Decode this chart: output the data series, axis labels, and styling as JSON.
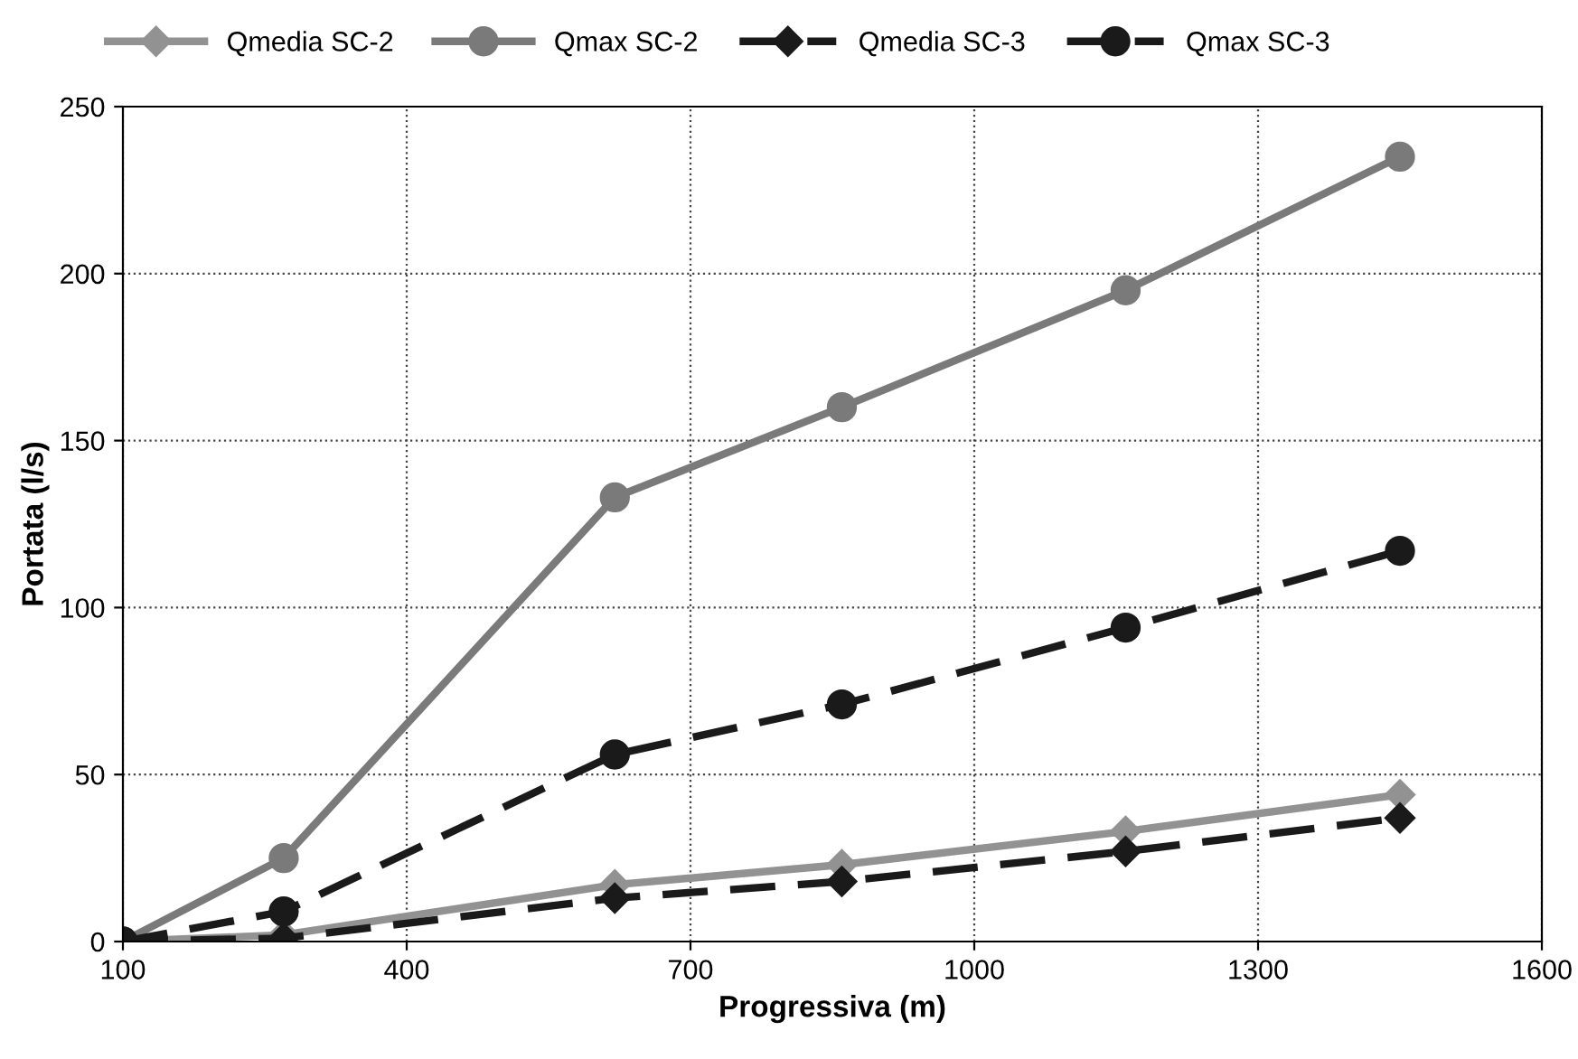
{
  "chart_data": {
    "type": "line",
    "xlabel": "Progressiva (m)",
    "ylabel": "Portata (l/s)",
    "x": [
      100,
      270,
      620,
      860,
      1160,
      1450
    ],
    "series": [
      {
        "name": "Qmedia SC-2",
        "color": "#929292",
        "marker": "diamond",
        "line_style": "solid",
        "values": [
          0,
          2,
          17,
          23,
          33,
          44
        ]
      },
      {
        "name": "Qmax SC-2",
        "color": "#7a7a7a",
        "marker": "circle",
        "line_style": "solid",
        "values": [
          0,
          25,
          133,
          160,
          195,
          235
        ]
      },
      {
        "name": "Qmedia SC-3",
        "color": "#1a1a1a",
        "marker": "diamond",
        "line_style": "dashed",
        "values": [
          0,
          1,
          13,
          18,
          27,
          37
        ]
      },
      {
        "name": "Qmax SC-3",
        "color": "#1a1a1a",
        "marker": "circle",
        "line_style": "dashed",
        "values": [
          0,
          9,
          56,
          71,
          94,
          117
        ]
      }
    ],
    "xlim": [
      100,
      1600
    ],
    "xticks": [
      100,
      400,
      700,
      1000,
      1300,
      1600
    ],
    "ylim": [
      0,
      250
    ],
    "yticks": [
      0,
      50,
      100,
      150,
      200,
      250
    ],
    "grid": true,
    "legend": "top"
  }
}
